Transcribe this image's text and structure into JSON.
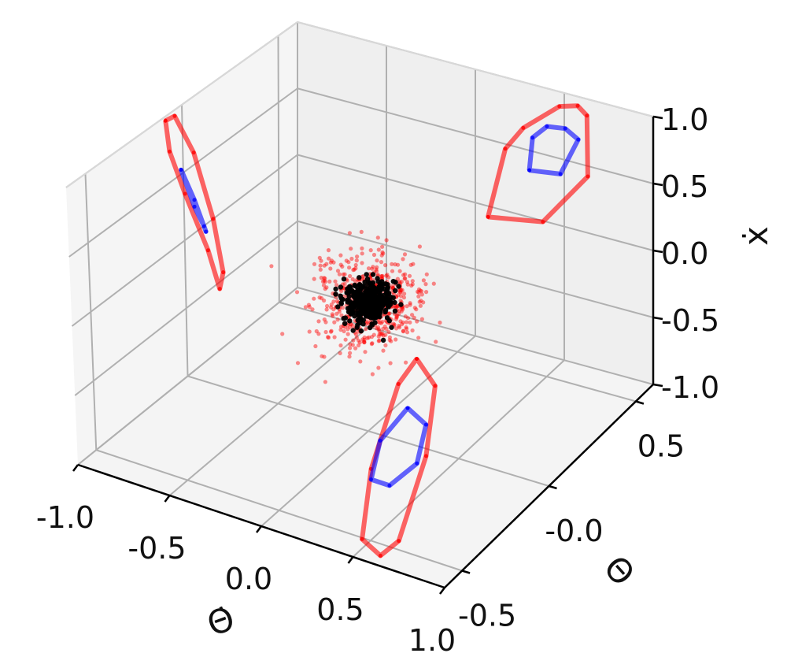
{
  "chart_data": {
    "type": "scatter",
    "projection": "3d",
    "title": "",
    "axes": {
      "x": {
        "label": "Θ̇",
        "ticks": [
          -1.0,
          -0.5,
          0.0,
          0.5,
          1.0
        ],
        "tick_labels": [
          "-1.0",
          "-0.5",
          "0.0",
          "0.5",
          "1.0"
        ],
        "range": [
          -1.0,
          1.0
        ]
      },
      "y": {
        "label": "Θ",
        "ticks": [
          -0.5,
          0.0,
          0.5
        ],
        "tick_labels": [
          "-0.5",
          "-0.0",
          "0.5"
        ],
        "range": [
          -0.6,
          0.6
        ]
      },
      "z": {
        "label": "ẋ",
        "ticks": [
          -1.0,
          -0.5,
          0.0,
          0.5,
          1.0
        ],
        "tick_labels": [
          "-1.0",
          "-0.5",
          "0.0",
          "0.5",
          "1.0"
        ],
        "range": [
          -1.0,
          1.0
        ]
      }
    },
    "grid": true,
    "point_clouds": [
      {
        "name": "",
        "color": "#ff0000",
        "center": [
          0.0,
          0.0,
          0.0
        ],
        "spread": [
          0.12,
          0.08,
          0.15
        ],
        "count": 600
      },
      {
        "name": "",
        "color": "#000000",
        "center": [
          0.0,
          0.0,
          0.0
        ],
        "spread": [
          0.05,
          0.035,
          0.06
        ],
        "count": 400
      }
    ],
    "projections": [
      {
        "plane": "x-wall",
        "color": "#ff0000",
        "points": [
          [
            -0.1,
            1.0
          ],
          [
            -0.05,
            0.98
          ],
          [
            0.05,
            0.6
          ],
          [
            0.15,
            0.0
          ],
          [
            0.2,
            -0.45
          ],
          [
            0.18,
            -0.55
          ],
          [
            0.12,
            -0.2
          ],
          [
            0.0,
            0.35
          ],
          [
            -0.08,
            0.75
          ],
          [
            -0.1,
            1.0
          ]
        ]
      },
      {
        "plane": "x-wall",
        "color": "#0000ff",
        "points": [
          [
            -0.02,
            0.55
          ],
          [
            0.05,
            0.2
          ],
          [
            0.1,
            0.0
          ],
          [
            0.11,
            -0.05
          ],
          [
            0.05,
            0.25
          ],
          [
            -0.02,
            0.55
          ]
        ]
      },
      {
        "plane": "y-wall",
        "color": "#ff0000",
        "points": [
          [
            0.05,
            0.0
          ],
          [
            0.35,
            0.1
          ],
          [
            0.6,
            0.55
          ],
          [
            0.6,
            1.0
          ],
          [
            0.55,
            1.05
          ],
          [
            0.45,
            1.0
          ],
          [
            0.25,
            0.75
          ],
          [
            0.15,
            0.55
          ],
          [
            0.05,
            0.0
          ]
        ]
      },
      {
        "plane": "y-wall",
        "color": "#0000ff",
        "points": [
          [
            0.28,
            0.45
          ],
          [
            0.45,
            0.5
          ],
          [
            0.55,
            0.8
          ],
          [
            0.48,
            0.85
          ],
          [
            0.38,
            0.82
          ],
          [
            0.3,
            0.7
          ],
          [
            0.28,
            0.45
          ]
        ]
      },
      {
        "plane": "floor",
        "color": "#ff0000",
        "points": [
          [
            -0.2,
            0.45
          ],
          [
            0.0,
            0.35
          ],
          [
            0.3,
            0.0
          ],
          [
            0.6,
            -0.45
          ],
          [
            0.6,
            -0.55
          ],
          [
            0.45,
            -0.5
          ],
          [
            0.15,
            -0.15
          ],
          [
            -0.15,
            0.3
          ],
          [
            -0.2,
            0.45
          ]
        ]
      },
      {
        "plane": "floor",
        "color": "#0000ff",
        "points": [
          [
            0.0,
            0.2
          ],
          [
            0.15,
            0.15
          ],
          [
            0.3,
            -0.05
          ],
          [
            0.3,
            -0.2
          ],
          [
            0.2,
            -0.2
          ],
          [
            0.05,
            0.0
          ],
          [
            0.0,
            0.2
          ]
        ]
      }
    ]
  }
}
